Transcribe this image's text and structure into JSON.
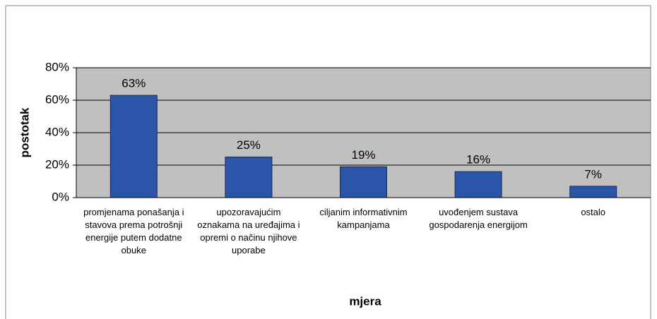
{
  "chart_data": {
    "type": "bar",
    "categories": [
      "promjenama ponašanja i stavova prema potrošnji energije putem dodatne obuke",
      "upozoravajućim oznakama na uređajima i opremi o načinu njihove uporabe",
      "ciljanim informativnim kampanjama",
      "uvođenjem sustava gospodarenja energijom",
      "ostalo"
    ],
    "values": [
      63,
      25,
      19,
      16,
      7
    ],
    "value_labels": [
      "63%",
      "25%",
      "19%",
      "16%",
      "7%"
    ],
    "color": "#2b55a8",
    "ylim": [
      0,
      80
    ],
    "yticks": [
      {
        "value": 0,
        "label": "0%"
      },
      {
        "value": 20,
        "label": "20%"
      },
      {
        "value": 40,
        "label": "40%"
      },
      {
        "value": 60,
        "label": "60%"
      },
      {
        "value": 80,
        "label": "80%"
      }
    ],
    "grid": true,
    "xlabel": "mjera",
    "ylabel": "postotak"
  }
}
